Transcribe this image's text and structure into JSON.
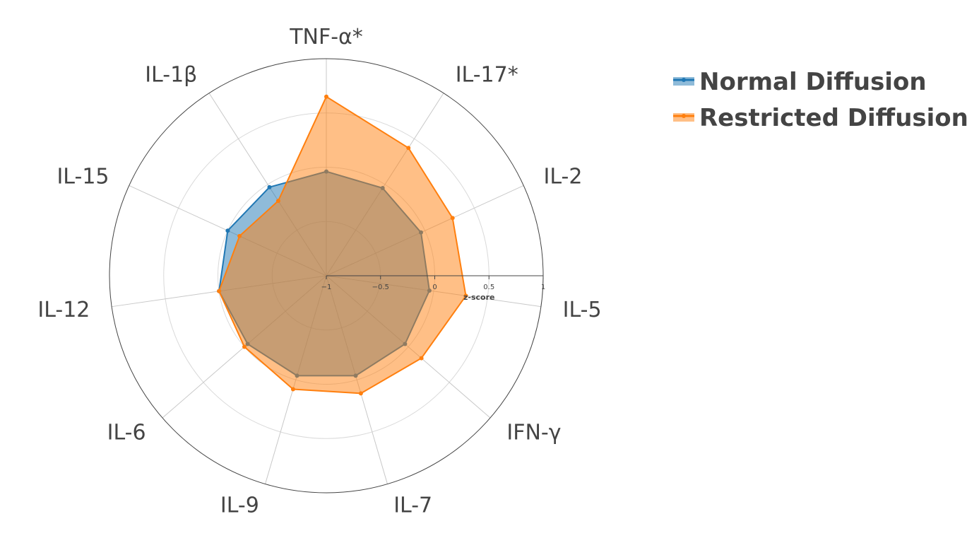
{
  "chart_data": {
    "type": "radar",
    "categories": [
      "TNF-α*",
      "IL-17*",
      "IL-2",
      "IL-5",
      "IFN-γ",
      "IL-7",
      "IL-9",
      "IL-6",
      "IL-12",
      "IL-15",
      "IL-1β"
    ],
    "radial_axis": {
      "title": "z-score",
      "range": [
        -1,
        1
      ],
      "ticks": [
        -1,
        -0.5,
        0,
        0.5,
        1
      ],
      "tick_labels": [
        "−1",
        "−0.5",
        "0",
        "0.5",
        "1"
      ]
    },
    "series": [
      {
        "name": "Normal Diffusion",
        "color": "#1f77b4",
        "values": [
          -0.04,
          -0.04,
          -0.04,
          -0.04,
          -0.04,
          -0.04,
          -0.04,
          -0.04,
          0.0,
          0.0,
          -0.03
        ]
      },
      {
        "name": "Restricted Diffusion",
        "color": "#ff7f0e",
        "values": [
          0.65,
          0.4,
          0.28,
          0.3,
          0.16,
          0.13,
          0.09,
          0.0,
          0.0,
          -0.12,
          -0.18
        ]
      }
    ],
    "legend_position": "top-right",
    "grid": true
  }
}
